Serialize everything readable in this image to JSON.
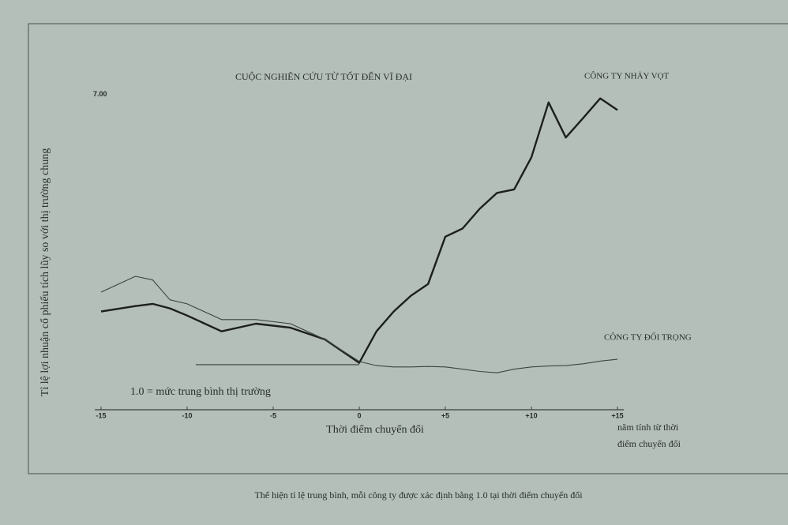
{
  "chart_data": {
    "type": "line",
    "title": "CUỘC NGHIÊN CỨU TỪ TỐT ĐẾN VĨ ĐẠI",
    "y_label": "Tỉ lệ lợi nhuận cổ phiếu tích lũy so với thị trường chung",
    "x_label": "Thời điểm chuyển đổi",
    "x_note": [
      "năm tính từ thời",
      "điểm chuyển đổi"
    ],
    "caption": "Thể hiện tỉ lệ trung bình, mỗi công ty được xác định bằng 1.0 tại thời điểm chuyển đổi",
    "x": [
      -15,
      -13,
      -12,
      -11,
      -10,
      -8,
      -6,
      -4,
      -2,
      0,
      1,
      2,
      3,
      4,
      5,
      6,
      7,
      8,
      9,
      10,
      11,
      12,
      13,
      14,
      15
    ],
    "series": [
      {
        "name": "CÔNG TY NHẢY VỌT",
        "color": "#1c1f1e",
        "width": 2.4,
        "values": [
          2.18,
          2.3,
          2.35,
          2.25,
          2.09,
          1.74,
          1.91,
          1.82,
          1.56,
          1.04,
          1.74,
          2.18,
          2.53,
          2.79,
          3.84,
          4.02,
          4.46,
          4.81,
          4.89,
          5.6,
          6.82,
          6.04,
          6.47,
          6.91,
          6.65
        ]
      },
      {
        "name": "CÔNG TY ĐỐI TRỌNG",
        "color": "#3d4340",
        "width": 1.1,
        "values": [
          2.61,
          2.96,
          2.88,
          2.44,
          2.35,
          2.0,
          2.0,
          1.91,
          1.56,
          1.07,
          0.98,
          0.95,
          0.95,
          0.96,
          0.95,
          0.9,
          0.85,
          0.82,
          0.9,
          0.95,
          0.97,
          0.98,
          1.02,
          1.08,
          1.12
        ]
      }
    ],
    "reference_line": {
      "y": 1,
      "x": [
        -9.5,
        0
      ],
      "label": "1.0 = mức trung bình thị trường"
    },
    "xlim": [
      -15,
      15
    ],
    "ylim": [
      0,
      7.2
    ],
    "xticks": [
      -15,
      -10,
      -5,
      0,
      {
        "value": 5,
        "label": "+5"
      },
      {
        "value": 10,
        "label": "+10"
      },
      {
        "value": 15,
        "label": "+15"
      }
    ],
    "yticks": [
      {
        "value": 7,
        "label": "7.00"
      }
    ]
  }
}
